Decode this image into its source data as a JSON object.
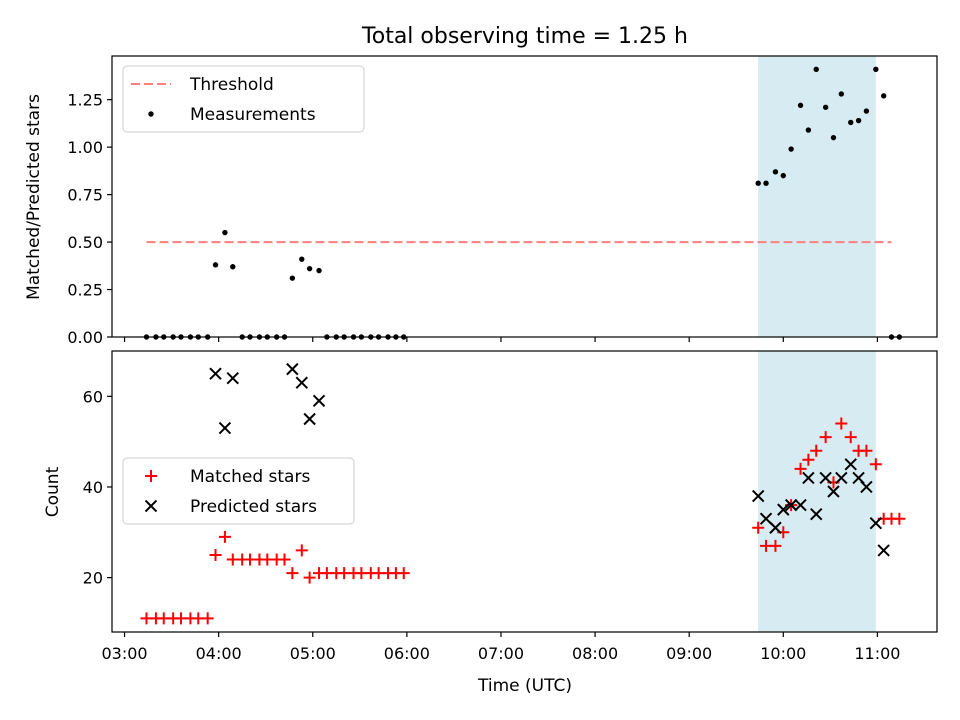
{
  "chart_data": [
    {
      "type": "scatter",
      "title": "Total observing time = 1.25 h",
      "xlabel": "",
      "ylabel": "Matched/Predicted stars",
      "x_unit": "UTC time (HH:MM)",
      "xlim": [
        "02:52",
        "11:38"
      ],
      "ylim": [
        0,
        1.48
      ],
      "yticks": [
        "0.00",
        "0.25",
        "0.50",
        "0.75",
        "1.00",
        "1.25"
      ],
      "highlight_span": [
        "09:44",
        "10:59"
      ],
      "highlight_color": "#add8e6",
      "legend_position": "top-left",
      "legend": [
        {
          "label": "Threshold",
          "style": "dashed-line",
          "color": "#ff7f7f"
        },
        {
          "label": "Measurements",
          "style": "dot",
          "color": "#000000"
        }
      ],
      "threshold": {
        "value": 0.5,
        "x_start": "03:14",
        "x_end": "11:09",
        "color": "#ff7f7f"
      },
      "series": [
        {
          "name": "Measurements",
          "color": "#000000",
          "points": [
            {
              "x": "03:14",
              "y": 0
            },
            {
              "x": "03:20",
              "y": 0
            },
            {
              "x": "03:25",
              "y": 0
            },
            {
              "x": "03:31",
              "y": 0
            },
            {
              "x": "03:36",
              "y": 0
            },
            {
              "x": "03:42",
              "y": 0
            },
            {
              "x": "03:47",
              "y": 0
            },
            {
              "x": "03:53",
              "y": 0
            },
            {
              "x": "03:58",
              "y": 0.38
            },
            {
              "x": "04:04",
              "y": 0.55
            },
            {
              "x": "04:09",
              "y": 0.37
            },
            {
              "x": "04:15",
              "y": 0
            },
            {
              "x": "04:20",
              "y": 0
            },
            {
              "x": "04:26",
              "y": 0
            },
            {
              "x": "04:31",
              "y": 0
            },
            {
              "x": "04:37",
              "y": 0
            },
            {
              "x": "04:42",
              "y": 0
            },
            {
              "x": "04:47",
              "y": 0.31
            },
            {
              "x": "04:53",
              "y": 0.41
            },
            {
              "x": "04:58",
              "y": 0.36
            },
            {
              "x": "05:04",
              "y": 0.35
            },
            {
              "x": "05:09",
              "y": 0
            },
            {
              "x": "05:15",
              "y": 0
            },
            {
              "x": "05:20",
              "y": 0
            },
            {
              "x": "05:26",
              "y": 0
            },
            {
              "x": "05:31",
              "y": 0
            },
            {
              "x": "05:37",
              "y": 0
            },
            {
              "x": "05:42",
              "y": 0
            },
            {
              "x": "05:48",
              "y": 0
            },
            {
              "x": "05:53",
              "y": 0
            },
            {
              "x": "05:58",
              "y": 0
            },
            {
              "x": "09:44",
              "y": 0.81
            },
            {
              "x": "09:49",
              "y": 0.81
            },
            {
              "x": "09:55",
              "y": 0.87
            },
            {
              "x": "10:00",
              "y": 0.85
            },
            {
              "x": "10:05",
              "y": 0.99
            },
            {
              "x": "10:11",
              "y": 1.22
            },
            {
              "x": "10:16",
              "y": 1.09
            },
            {
              "x": "10:21",
              "y": 1.41
            },
            {
              "x": "10:27",
              "y": 1.21
            },
            {
              "x": "10:32",
              "y": 1.05
            },
            {
              "x": "10:37",
              "y": 1.28
            },
            {
              "x": "10:43",
              "y": 1.13
            },
            {
              "x": "10:48",
              "y": 1.14
            },
            {
              "x": "10:53",
              "y": 1.19
            },
            {
              "x": "10:59",
              "y": 1.41
            },
            {
              "x": "11:04",
              "y": 1.27
            },
            {
              "x": "11:09",
              "y": 0
            },
            {
              "x": "11:14",
              "y": 0
            }
          ]
        }
      ]
    },
    {
      "type": "scatter",
      "title": "",
      "xlabel": "Time (UTC)",
      "ylabel": "Count",
      "xlim": [
        "02:52",
        "11:38"
      ],
      "ylim": [
        8,
        70
      ],
      "yticks": [
        "20",
        "40",
        "60"
      ],
      "xticks": [
        "03:00",
        "04:00",
        "05:00",
        "06:00",
        "07:00",
        "08:00",
        "09:00",
        "10:00",
        "11:00"
      ],
      "highlight_span": [
        "09:44",
        "10:59"
      ],
      "highlight_color": "#add8e6",
      "legend_position": "center-left",
      "legend": [
        {
          "label": "Matched stars",
          "style": "plus",
          "color": "#ff0000"
        },
        {
          "label": "Predicted stars",
          "style": "x",
          "color": "#000000"
        }
      ],
      "series": [
        {
          "name": "Matched stars",
          "marker": "plus",
          "color": "#ff0000",
          "points": [
            {
              "x": "03:14",
              "y": 11
            },
            {
              "x": "03:20",
              "y": 11
            },
            {
              "x": "03:25",
              "y": 11
            },
            {
              "x": "03:31",
              "y": 11
            },
            {
              "x": "03:36",
              "y": 11
            },
            {
              "x": "03:42",
              "y": 11
            },
            {
              "x": "03:47",
              "y": 11
            },
            {
              "x": "03:53",
              "y": 11
            },
            {
              "x": "03:58",
              "y": 25
            },
            {
              "x": "04:04",
              "y": 29
            },
            {
              "x": "04:09",
              "y": 24
            },
            {
              "x": "04:15",
              "y": 24
            },
            {
              "x": "04:20",
              "y": 24
            },
            {
              "x": "04:26",
              "y": 24
            },
            {
              "x": "04:31",
              "y": 24
            },
            {
              "x": "04:37",
              "y": 24
            },
            {
              "x": "04:42",
              "y": 24
            },
            {
              "x": "04:47",
              "y": 21
            },
            {
              "x": "04:53",
              "y": 26
            },
            {
              "x": "04:58",
              "y": 20
            },
            {
              "x": "05:04",
              "y": 21
            },
            {
              "x": "05:09",
              "y": 21
            },
            {
              "x": "05:15",
              "y": 21
            },
            {
              "x": "05:20",
              "y": 21
            },
            {
              "x": "05:26",
              "y": 21
            },
            {
              "x": "05:31",
              "y": 21
            },
            {
              "x": "05:37",
              "y": 21
            },
            {
              "x": "05:42",
              "y": 21
            },
            {
              "x": "05:48",
              "y": 21
            },
            {
              "x": "05:53",
              "y": 21
            },
            {
              "x": "05:58",
              "y": 21
            },
            {
              "x": "09:44",
              "y": 31
            },
            {
              "x": "09:49",
              "y": 27
            },
            {
              "x": "09:55",
              "y": 27
            },
            {
              "x": "10:00",
              "y": 30
            },
            {
              "x": "10:05",
              "y": 36
            },
            {
              "x": "10:11",
              "y": 44
            },
            {
              "x": "10:16",
              "y": 46
            },
            {
              "x": "10:21",
              "y": 48
            },
            {
              "x": "10:27",
              "y": 51
            },
            {
              "x": "10:32",
              "y": 41
            },
            {
              "x": "10:37",
              "y": 54
            },
            {
              "x": "10:43",
              "y": 51
            },
            {
              "x": "10:48",
              "y": 48
            },
            {
              "x": "10:53",
              "y": 48
            },
            {
              "x": "10:59",
              "y": 45
            },
            {
              "x": "11:04",
              "y": 33
            },
            {
              "x": "11:09",
              "y": 33
            },
            {
              "x": "11:14",
              "y": 33
            }
          ]
        },
        {
          "name": "Predicted stars",
          "marker": "x",
          "color": "#000000",
          "points": [
            {
              "x": "03:58",
              "y": 65
            },
            {
              "x": "04:04",
              "y": 53
            },
            {
              "x": "04:09",
              "y": 64
            },
            {
              "x": "04:47",
              "y": 66
            },
            {
              "x": "04:53",
              "y": 63
            },
            {
              "x": "04:58",
              "y": 55
            },
            {
              "x": "05:04",
              "y": 59
            },
            {
              "x": "09:44",
              "y": 38
            },
            {
              "x": "09:49",
              "y": 33
            },
            {
              "x": "09:55",
              "y": 31
            },
            {
              "x": "10:00",
              "y": 35
            },
            {
              "x": "10:05",
              "y": 36
            },
            {
              "x": "10:11",
              "y": 36
            },
            {
              "x": "10:16",
              "y": 42
            },
            {
              "x": "10:21",
              "y": 34
            },
            {
              "x": "10:27",
              "y": 42
            },
            {
              "x": "10:32",
              "y": 39
            },
            {
              "x": "10:37",
              "y": 42
            },
            {
              "x": "10:43",
              "y": 45
            },
            {
              "x": "10:48",
              "y": 42
            },
            {
              "x": "10:53",
              "y": 40
            },
            {
              "x": "10:59",
              "y": 32
            },
            {
              "x": "11:04",
              "y": 26
            }
          ]
        }
      ]
    }
  ]
}
